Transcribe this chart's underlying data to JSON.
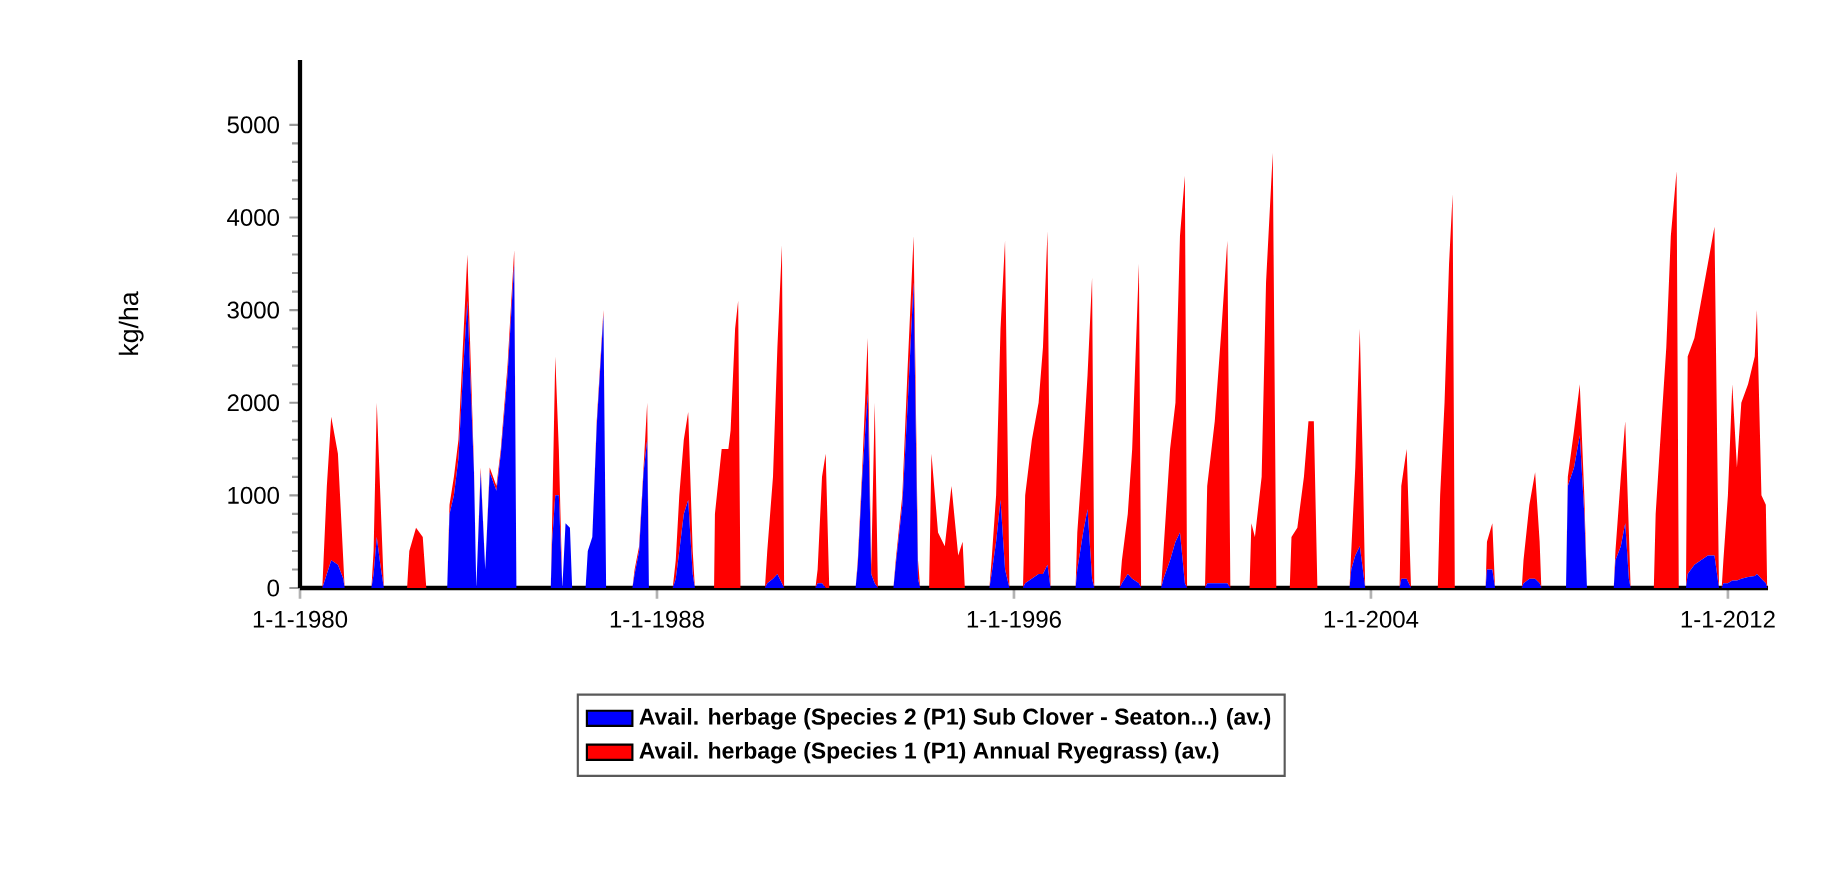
{
  "chart_data": {
    "type": "area",
    "stacked": true,
    "ylabel": "kg/ha",
    "legend": "bottom",
    "xlim": [
      "1980-01-01",
      "2012-11-25"
    ],
    "ylim": [
      0,
      5700
    ],
    "xticks": [
      {
        "value": "1980-01-01",
        "label": "1-1-1980"
      },
      {
        "value": "1988-01-01",
        "label": "1-1-1988"
      },
      {
        "value": "1996-01-01",
        "label": "1-1-1996"
      },
      {
        "value": "2004-01-01",
        "label": "1-1-2004"
      },
      {
        "value": "2012-01-01",
        "label": "1-1-2012"
      }
    ],
    "yticks": [
      0,
      1000,
      2000,
      3000,
      4000,
      5000
    ],
    "x": [
      "1980-07-02",
      "1980-08-08",
      "1980-09-13",
      "1980-11-07",
      "1980-12-21",
      "1981-01-01",
      "1981-08-08",
      "1981-08-26",
      "1981-09-21",
      "1981-10-20",
      "1981-11-18",
      "1982-05-27",
      "1982-06-14",
      "1982-08-08",
      "1982-10-02",
      "1982-10-31",
      "1983-04-20",
      "1983-05-09",
      "1983-06-14",
      "1983-07-21",
      "1983-08-26",
      "1983-10-02",
      "1983-11-25",
      "1983-12-14",
      "1984-01-19",
      "1984-02-25",
      "1984-04-02",
      "1984-05-27",
      "1984-07-02",
      "1984-08-26",
      "1984-10-20",
      "1984-11-07",
      "1985-08-15",
      "1985-08-26",
      "1985-09-21",
      "1985-10-20",
      "1985-11-18",
      "1985-12-14",
      "1986-01-19",
      "1986-02-06",
      "1986-05-27",
      "1986-06-14",
      "1986-07-21",
      "1986-08-26",
      "1986-10-20",
      "1986-11-11",
      "1987-06-14",
      "1987-07-02",
      "1987-08-08",
      "1987-09-13",
      "1987-10-13",
      "1987-10-27",
      "1988-05-09",
      "1988-06-03",
      "1988-07-02",
      "1988-08-08",
      "1988-09-13",
      "1988-10-20",
      "1988-11-07",
      "1989-04-13",
      "1989-04-20",
      "1989-06-14",
      "1989-08-08",
      "1989-08-26",
      "1989-10-02",
      "1989-10-27",
      "1989-11-15",
      "1990-06-03",
      "1990-06-22",
      "1990-08-08",
      "1990-09-13",
      "1990-10-20",
      "1990-11-07",
      "1991-07-21",
      "1991-08-08",
      "1991-09-13",
      "1991-10-13",
      "1991-11-11",
      "1992-06-14",
      "1992-07-02",
      "1992-08-08",
      "1992-09-21",
      "1992-10-20",
      "1992-11-18",
      "1992-12-14",
      "1993-04-20",
      "1993-05-09",
      "1993-07-02",
      "1993-08-15",
      "1993-10-02",
      "1993-11-07",
      "1993-11-25",
      "1994-02-06",
      "1994-02-25",
      "1994-04-20",
      "1994-06-14",
      "1994-08-08",
      "1994-10-02",
      "1994-11-07",
      "1994-11-25",
      "1995-06-14",
      "1995-07-02",
      "1995-08-08",
      "1995-09-13",
      "1995-10-20",
      "1995-11-25",
      "1996-03-15",
      "1996-04-02",
      "1996-05-27",
      "1996-07-21",
      "1996-08-26",
      "1996-10-02",
      "1996-10-27",
      "1997-05-20",
      "1997-06-03",
      "1997-07-21",
      "1997-08-26",
      "1997-10-02",
      "1997-10-20",
      "1998-05-16",
      "1998-06-03",
      "1998-07-21",
      "1998-08-26",
      "1998-10-20",
      "1998-11-07",
      "1999-04-20",
      "1999-05-09",
      "1999-07-02",
      "1999-08-15",
      "1999-09-21",
      "1999-10-31",
      "1999-11-18",
      "2000-04-13",
      "2000-05-01",
      "2000-07-02",
      "2000-08-26",
      "2000-10-13",
      "2000-11-07",
      "2001-04-13",
      "2001-04-28",
      "2001-05-27",
      "2001-07-21",
      "2001-08-26",
      "2001-10-20",
      "2001-11-18",
      "2002-03-08",
      "2002-03-22",
      "2002-05-09",
      "2002-07-02",
      "2002-08-08",
      "2002-09-21",
      "2002-10-20",
      "2003-07-10",
      "2003-07-24",
      "2003-08-26",
      "2003-10-02",
      "2003-10-27",
      "2003-11-15",
      "2004-08-23",
      "2004-09-06",
      "2004-10-20",
      "2004-11-25",
      "2005-07-02",
      "2005-07-21",
      "2005-08-26",
      "2005-10-02",
      "2005-10-31",
      "2005-11-18",
      "2006-07-28",
      "2006-08-08",
      "2006-09-21",
      "2006-10-13",
      "2007-05-20",
      "2007-06-03",
      "2007-07-21",
      "2007-09-06",
      "2007-10-13",
      "2007-10-27",
      "2008-05-16",
      "2008-05-31",
      "2008-07-21",
      "2008-09-06",
      "2008-10-13",
      "2008-11-04",
      "2009-06-11",
      "2009-06-25",
      "2009-08-08",
      "2009-09-13",
      "2009-10-13",
      "2009-10-27",
      "2010-05-05",
      "2010-05-20",
      "2010-07-02",
      "2010-08-15",
      "2010-09-21",
      "2010-11-07",
      "2010-11-25",
      "2011-01-23",
      "2011-02-06",
      "2011-04-02",
      "2011-05-27",
      "2011-07-21",
      "2011-09-13",
      "2011-10-20",
      "2011-11-11",
      "2011-11-25",
      "2012-01-01",
      "2012-02-06",
      "2012-03-15",
      "2012-04-20",
      "2012-06-14",
      "2012-08-08",
      "2012-08-26",
      "2012-10-02",
      "2012-11-07",
      "2012-11-18"
    ],
    "series": [
      {
        "name": "Avail. herbage (Species 2 (P1) Sub Clover - Seaton...) (av.)",
        "color": "#0000ff",
        "values": [
          0,
          150,
          300,
          250,
          100,
          0,
          0,
          150,
          550,
          250,
          0,
          0,
          0,
          0,
          0,
          0,
          0,
          800,
          1000,
          1400,
          2300,
          3100,
          1250,
          0,
          1250,
          200,
          1250,
          1050,
          1450,
          2300,
          3500,
          0,
          0,
          500,
          1000,
          1000,
          0,
          700,
          650,
          0,
          0,
          400,
          550,
          1750,
          2950,
          0,
          0,
          150,
          400,
          1250,
          1600,
          0,
          0,
          100,
          400,
          800,
          950,
          150,
          0,
          0,
          0,
          0,
          0,
          0,
          0,
          0,
          0,
          0,
          50,
          100,
          150,
          50,
          0,
          0,
          50,
          50,
          0,
          0,
          0,
          250,
          1200,
          2100,
          150,
          50,
          0,
          0,
          250,
          900,
          2000,
          3300,
          100,
          0,
          0,
          0,
          0,
          0,
          0,
          0,
          0,
          0,
          0,
          150,
          500,
          950,
          200,
          0,
          0,
          50,
          100,
          150,
          150,
          250,
          0,
          0,
          200,
          600,
          850,
          100,
          0,
          0,
          50,
          150,
          100,
          50,
          0,
          0,
          100,
          300,
          500,
          600,
          50,
          0,
          0,
          50,
          50,
          50,
          50,
          0,
          0,
          0,
          0,
          0,
          0,
          0,
          0,
          0,
          0,
          0,
          0,
          0,
          0,
          0,
          0,
          200,
          350,
          450,
          200,
          0,
          0,
          100,
          100,
          0,
          0,
          0,
          0,
          0,
          0,
          0,
          0,
          200,
          200,
          0,
          0,
          50,
          100,
          100,
          50,
          0,
          0,
          1100,
          1300,
          1650,
          800,
          0,
          0,
          300,
          450,
          700,
          100,
          0,
          0,
          0,
          0,
          0,
          0,
          0,
          0,
          0,
          150,
          250,
          300,
          350,
          350,
          0,
          0,
          50,
          50,
          80,
          80,
          100,
          120,
          130,
          150,
          100,
          50,
          0
        ]
      },
      {
        "name": "Avail. herbage (Species 1 (P1) Annual Ryegrass) (av.)",
        "color": "#ff0000",
        "values": [
          0,
          950,
          1550,
          1200,
          200,
          0,
          0,
          250,
          1450,
          750,
          0,
          0,
          400,
          650,
          550,
          0,
          0,
          100,
          200,
          200,
          300,
          500,
          50,
          0,
          50,
          0,
          50,
          50,
          50,
          100,
          150,
          0,
          0,
          200,
          1500,
          500,
          0,
          0,
          0,
          0,
          0,
          0,
          0,
          50,
          50,
          0,
          0,
          50,
          50,
          50,
          400,
          0,
          0,
          200,
          600,
          800,
          950,
          250,
          0,
          0,
          800,
          1500,
          1500,
          1700,
          2800,
          3100,
          0,
          0,
          350,
          1100,
          2450,
          3650,
          0,
          0,
          150,
          1150,
          1450,
          0,
          0,
          50,
          100,
          600,
          50,
          1950,
          0,
          0,
          50,
          100,
          400,
          500,
          200,
          0,
          0,
          1450,
          600,
          450,
          1100,
          350,
          500,
          0,
          0,
          150,
          500,
          1850,
          3550,
          0,
          0,
          950,
          1500,
          1850,
          2450,
          3600,
          0,
          0,
          400,
          900,
          1450,
          3250,
          0,
          0,
          250,
          650,
          1400,
          3450,
          0,
          0,
          300,
          1200,
          1500,
          3200,
          4400,
          0,
          0,
          1050,
          1750,
          2750,
          3700,
          0,
          0,
          700,
          550,
          1200,
          3300,
          4700,
          0,
          0,
          550,
          650,
          1200,
          1800,
          1800,
          0,
          0,
          200,
          950,
          2350,
          1100,
          0,
          0,
          1000,
          1400,
          0,
          0,
          1000,
          2000,
          3500,
          4250,
          0,
          0,
          300,
          500,
          0,
          0,
          250,
          800,
          1150,
          450,
          0,
          0,
          100,
          400,
          550,
          200,
          0,
          0,
          100,
          750,
          1100,
          500,
          0,
          0,
          800,
          1700,
          2600,
          3800,
          4500,
          0,
          0,
          2350,
          2450,
          2800,
          3150,
          3550,
          0,
          0,
          250,
          950,
          2120,
          1220,
          1900,
          2080,
          2370,
          2850,
          900,
          850,
          0
        ]
      }
    ]
  }
}
